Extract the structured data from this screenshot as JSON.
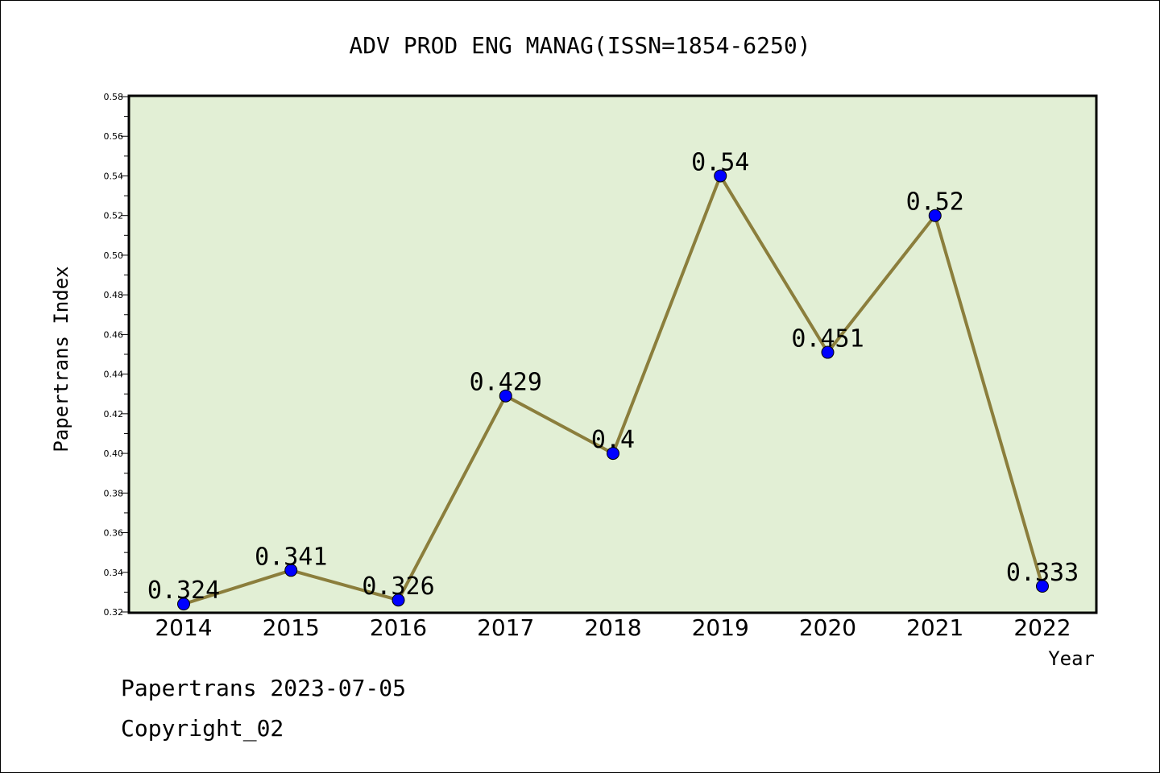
{
  "chart_data": {
    "type": "line",
    "title": "ADV PROD ENG MANAG(ISSN=1854-6250)",
    "xlabel": "Year",
    "ylabel": "Papertrans Index",
    "categories": [
      "2014",
      "2015",
      "2016",
      "2017",
      "2018",
      "2019",
      "2020",
      "2021",
      "2022"
    ],
    "series": [
      {
        "values": [
          0.324,
          0.341,
          0.326,
          0.429,
          0.4,
          0.54,
          0.451,
          0.52,
          0.333
        ],
        "labels": [
          "0.324",
          "0.341",
          "0.326",
          "0.429",
          "0.4",
          "0.54",
          "0.451",
          "0.52",
          "0.333"
        ]
      }
    ],
    "ylim": [
      0.32,
      0.58
    ],
    "yticks": [
      "0.32",
      "0.34",
      "0.36",
      "0.38",
      "0.40",
      "0.42",
      "0.44",
      "0.46",
      "0.48",
      "0.50",
      "0.52",
      "0.54",
      "0.56",
      "0.58"
    ],
    "grid": false,
    "legend": "none",
    "colors": {
      "plot_bg": "#e2efd5",
      "line": "#8b7e3c",
      "marker": "#0000ff"
    }
  },
  "footer": {
    "date_line": "Papertrans 2023-07-05",
    "copyright": "Copyright_02"
  }
}
